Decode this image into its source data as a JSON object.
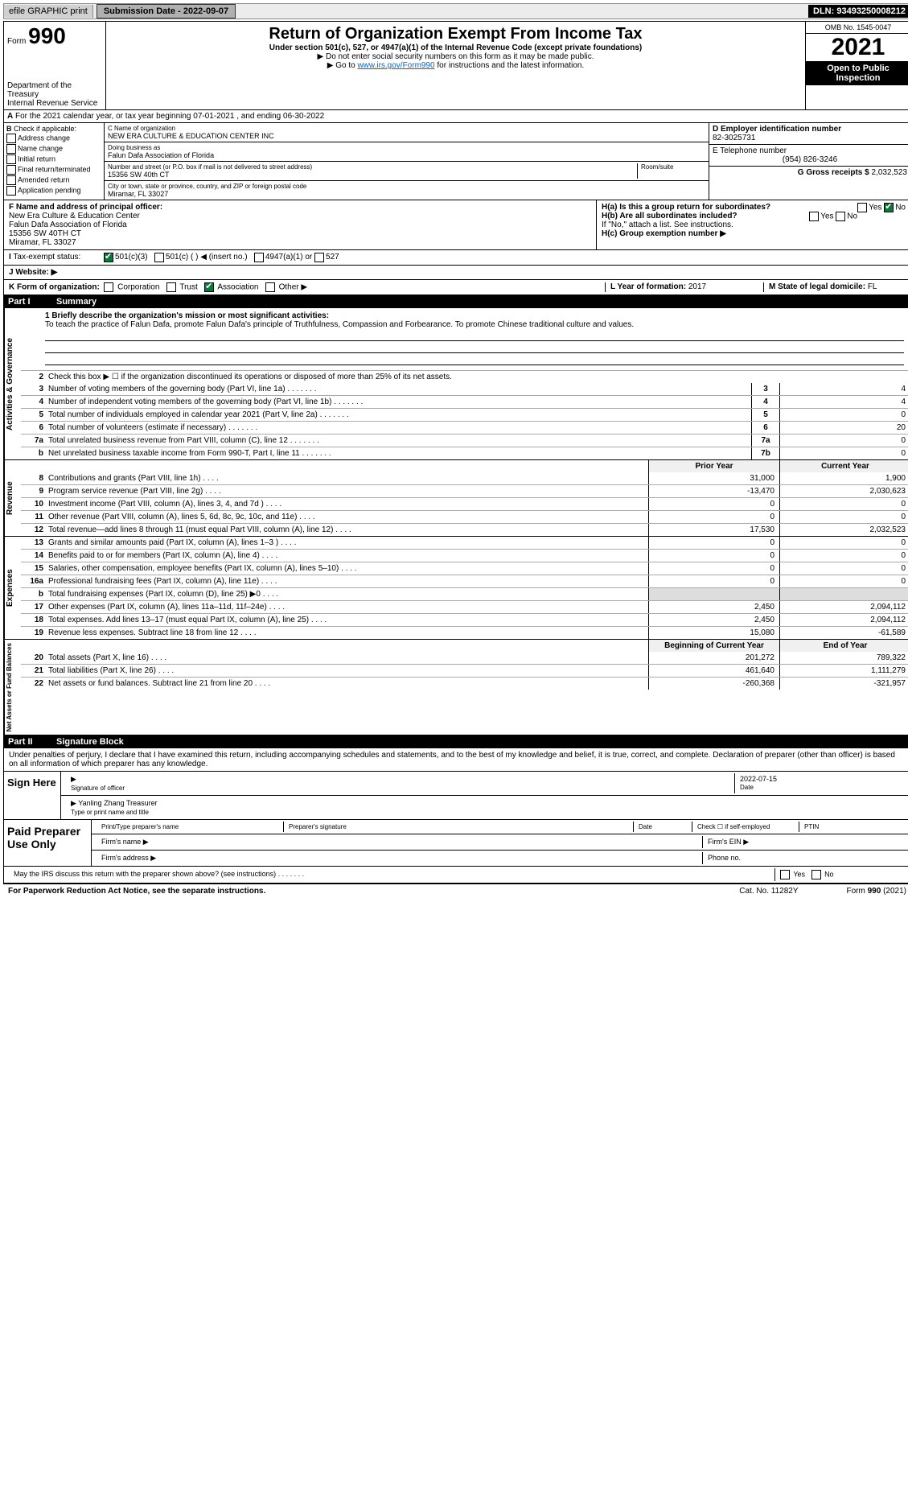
{
  "top_bar": {
    "efile": "efile GRAPHIC print",
    "submission_label": "Submission Date - 2022-09-07",
    "dln": "DLN: 93493250008212"
  },
  "header": {
    "form_label": "Form",
    "form_no": "990",
    "dept": "Department of the Treasury",
    "irs": "Internal Revenue Service",
    "title": "Return of Organization Exempt From Income Tax",
    "subtitle": "Under section 501(c), 527, or 4947(a)(1) of the Internal Revenue Code (except private foundations)",
    "note1": "▶ Do not enter social security numbers on this form as it may be made public.",
    "note2_pre": "▶ Go to ",
    "note2_link": "www.irs.gov/Form990",
    "note2_post": " for instructions and the latest information.",
    "omb": "OMB No. 1545-0047",
    "year": "2021",
    "open": "Open to Public Inspection"
  },
  "row_a": "For the 2021 calendar year, or tax year beginning 07-01-2021    , and ending 06-30-2022",
  "b_checks": {
    "label": "Check if applicable:",
    "items": [
      "Address change",
      "Name change",
      "Initial return",
      "Final return/terminated",
      "Amended return",
      "Application pending"
    ]
  },
  "c_block": {
    "c_label": "C Name of organization",
    "c_name": "NEW ERA CULTURE & EDUCATION CENTER INC",
    "dba_label": "Doing business as",
    "dba": "Falun Dafa Association of Florida",
    "addr_label": "Number and street (or P.O. box if mail is not delivered to street address)",
    "addr": "15356 SW 40th CT",
    "room": "Room/suite",
    "city_label": "City or town, state or province, country, and ZIP or foreign postal code",
    "city": "Miramar, FL  33027"
  },
  "d_block": {
    "d_label": "D Employer identification number",
    "d_val": "82-3025731",
    "e_label": "E Telephone number",
    "e_val": "(954) 826-3246",
    "g_label": "G Gross receipts $",
    "g_val": "2,032,523"
  },
  "f_block": {
    "label": "F  Name and address of principal officer:",
    "line1": "New Era Culture & Education Center",
    "line2": "Falun Dafa Association of Florida",
    "line3": "15356 SW 40TH CT",
    "line4": "Miramar, FL  33027"
  },
  "h_block": {
    "ha": "H(a)  Is this a group return for subordinates?",
    "ha_yes": "Yes",
    "ha_no": "No",
    "hb": "H(b)  Are all subordinates included?",
    "hb_yes": "Yes",
    "hb_no": "No",
    "hb_note": "If \"No,\" attach a list. See instructions.",
    "hc": "H(c)  Group exemption number ▶"
  },
  "i_row": {
    "label": "Tax-exempt status:",
    "o1": "501(c)(3)",
    "o2": "501(c) (  ) ◀ (insert no.)",
    "o3": "4947(a)(1) or",
    "o4": "527"
  },
  "j_row": {
    "label": "J  Website: ▶"
  },
  "k_row": {
    "label": "K Form of organization:",
    "o1": "Corporation",
    "o2": "Trust",
    "o3": "Association",
    "o4": "Other ▶",
    "l_label": "L Year of formation:",
    "l_val": "2017",
    "m_label": "M State of legal domicile:",
    "m_val": "FL"
  },
  "part1": {
    "header_pt": "Part I",
    "header_title": "Summary",
    "mission_label": "1   Briefly describe the organization's mission or most significant activities:",
    "mission": "To teach the practice of Falun Dafa, promote Falun Dafa's principle of Truthfulness, Compassion and Forbearance. To promote Chinese traditional culture and values.",
    "line2": "Check this box ▶ ☐  if the organization discontinued its operations or disposed of more than 25% of its net assets.",
    "sections": {
      "governance": {
        "label": "Activities & Governance",
        "rows": [
          {
            "n": "3",
            "d": "Number of voting members of the governing body (Part VI, line 1a)",
            "rn": "3",
            "v": "4"
          },
          {
            "n": "4",
            "d": "Number of independent voting members of the governing body (Part VI, line 1b)",
            "rn": "4",
            "v": "4"
          },
          {
            "n": "5",
            "d": "Total number of individuals employed in calendar year 2021 (Part V, line 2a)",
            "rn": "5",
            "v": "0"
          },
          {
            "n": "6",
            "d": "Total number of volunteers (estimate if necessary)",
            "rn": "6",
            "v": "20"
          },
          {
            "n": "7a",
            "d": "Total unrelated business revenue from Part VIII, column (C), line 12",
            "rn": "7a",
            "v": "0"
          },
          {
            "n": "b",
            "d": "Net unrelated business taxable income from Form 990-T, Part I, line 11",
            "rn": "7b",
            "v": "0"
          }
        ]
      },
      "revenue": {
        "label": "Revenue",
        "header_a": "Prior Year",
        "header_b": "Current Year",
        "rows": [
          {
            "n": "8",
            "d": "Contributions and grants (Part VIII, line 1h)",
            "a": "31,000",
            "b": "1,900"
          },
          {
            "n": "9",
            "d": "Program service revenue (Part VIII, line 2g)",
            "a": "-13,470",
            "b": "2,030,623"
          },
          {
            "n": "10",
            "d": "Investment income (Part VIII, column (A), lines 3, 4, and 7d )",
            "a": "0",
            "b": "0"
          },
          {
            "n": "11",
            "d": "Other revenue (Part VIII, column (A), lines 5, 6d, 8c, 9c, 10c, and 11e)",
            "a": "0",
            "b": "0"
          },
          {
            "n": "12",
            "d": "Total revenue—add lines 8 through 11 (must equal Part VIII, column (A), line 12)",
            "a": "17,530",
            "b": "2,032,523"
          }
        ]
      },
      "expenses": {
        "label": "Expenses",
        "rows": [
          {
            "n": "13",
            "d": "Grants and similar amounts paid (Part IX, column (A), lines 1–3 )",
            "a": "0",
            "b": "0"
          },
          {
            "n": "14",
            "d": "Benefits paid to or for members (Part IX, column (A), line 4)",
            "a": "0",
            "b": "0"
          },
          {
            "n": "15",
            "d": "Salaries, other compensation, employee benefits (Part IX, column (A), lines 5–10)",
            "a": "0",
            "b": "0"
          },
          {
            "n": "16a",
            "d": "Professional fundraising fees (Part IX, column (A), line 11e)",
            "a": "0",
            "b": "0"
          },
          {
            "n": "b",
            "d": "Total fundraising expenses (Part IX, column (D), line 25) ▶0",
            "a": "",
            "b": ""
          },
          {
            "n": "17",
            "d": "Other expenses (Part IX, column (A), lines 11a–11d, 11f–24e)",
            "a": "2,450",
            "b": "2,094,112"
          },
          {
            "n": "18",
            "d": "Total expenses. Add lines 13–17 (must equal Part IX, column (A), line 25)",
            "a": "2,450",
            "b": "2,094,112"
          },
          {
            "n": "19",
            "d": "Revenue less expenses. Subtract line 18 from line 12",
            "a": "15,080",
            "b": "-61,589"
          }
        ]
      },
      "net": {
        "label": "Net Assets or Fund Balances",
        "header_a": "Beginning of Current Year",
        "header_b": "End of Year",
        "rows": [
          {
            "n": "20",
            "d": "Total assets (Part X, line 16)",
            "a": "201,272",
            "b": "789,322"
          },
          {
            "n": "21",
            "d": "Total liabilities (Part X, line 26)",
            "a": "461,640",
            "b": "1,111,279"
          },
          {
            "n": "22",
            "d": "Net assets or fund balances. Subtract line 21 from line 20",
            "a": "-260,368",
            "b": "-321,957"
          }
        ]
      }
    }
  },
  "part2": {
    "header_pt": "Part II",
    "header_title": "Signature Block",
    "declaration": "Under penalties of perjury, I declare that I have examined this return, including accompanying schedules and statements, and to the best of my knowledge and belief, it is true, correct, and complete. Declaration of preparer (other than officer) is based on all information of which preparer has any knowledge.",
    "sign_here": "Sign Here",
    "sig_officer": "Signature of officer",
    "sig_date": "2022-07-15",
    "date_label": "Date",
    "officer_name": "Yanling Zhang Treasurer",
    "officer_label": "Type or print name and title",
    "paid": "Paid Preparer Use Only",
    "prep_name": "Print/Type preparer's name",
    "prep_sig": "Preparer's signature",
    "prep_date": "Date",
    "prep_check": "Check ☐ if self-employed",
    "ptin": "PTIN",
    "firm_name": "Firm's name  ▶",
    "firm_ein": "Firm's EIN ▶",
    "firm_addr": "Firm's address ▶",
    "phone": "Phone no.",
    "may_discuss": "May the IRS discuss this return with the preparer shown above? (see instructions)",
    "yes": "Yes",
    "no": "No"
  },
  "footer": {
    "left": "For Paperwork Reduction Act Notice, see the separate instructions.",
    "mid": "Cat. No. 11282Y",
    "right": "Form 990 (2021)"
  }
}
